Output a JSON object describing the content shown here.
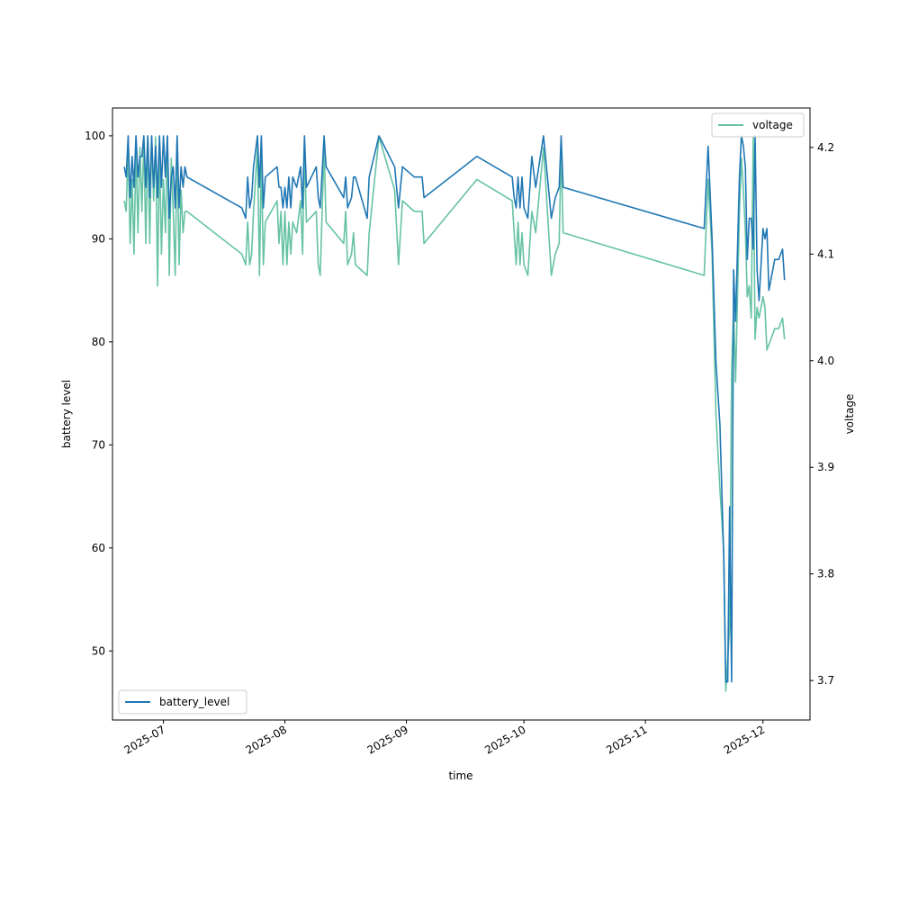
{
  "chart_data": {
    "type": "line",
    "xlabel": "time",
    "ylabel_left": "battery level",
    "ylabel_right": "voltage",
    "x_tick_labels": [
      "2025-07",
      "2025-08",
      "2025-09",
      "2025-10",
      "2025-11",
      "2025-12"
    ],
    "x_tick_dates": [
      "2025-07-01",
      "2025-08-01",
      "2025-09-01",
      "2025-10-01",
      "2025-11-01",
      "2025-12-01"
    ],
    "xlim": [
      "2025-06-18",
      "2025-12-13"
    ],
    "ylim_left": [
      43.3,
      102.7
    ],
    "ylim_right": [
      3.663,
      4.237
    ],
    "yticks_left": [
      50,
      60,
      70,
      80,
      90,
      100
    ],
    "yticks_right": [
      3.7,
      3.8,
      3.9,
      4.0,
      4.1,
      4.2
    ],
    "grid": false,
    "series": [
      {
        "name": "battery_level",
        "axis": "left",
        "color": "#1f77b4",
        "legend_position": "lower-left",
        "points": [
          [
            "2025-06-21T00:00",
            97
          ],
          [
            "2025-06-21T12:00",
            96
          ],
          [
            "2025-06-22T00:00",
            100
          ],
          [
            "2025-06-22T12:00",
            94
          ],
          [
            "2025-06-23T00:00",
            98
          ],
          [
            "2025-06-23T12:00",
            95
          ],
          [
            "2025-06-24T00:00",
            100
          ],
          [
            "2025-06-24T12:00",
            96
          ],
          [
            "2025-06-25T00:00",
            98
          ],
          [
            "2025-06-25T12:00",
            98
          ],
          [
            "2025-06-26T00:00",
            100
          ],
          [
            "2025-06-26T12:00",
            95
          ],
          [
            "2025-06-27T00:00",
            100
          ],
          [
            "2025-06-27T12:00",
            94
          ],
          [
            "2025-06-28T00:00",
            100
          ],
          [
            "2025-06-28T12:00",
            95
          ],
          [
            "2025-06-29T00:00",
            99
          ],
          [
            "2025-06-29T12:00",
            94
          ],
          [
            "2025-06-30T00:00",
            100
          ],
          [
            "2025-06-30T12:00",
            95
          ],
          [
            "2025-07-01T00:00",
            100
          ],
          [
            "2025-07-01T12:00",
            96
          ],
          [
            "2025-07-02T00:00",
            100
          ],
          [
            "2025-07-02T12:00",
            92
          ],
          [
            "2025-07-03T00:00",
            96
          ],
          [
            "2025-07-03T12:00",
            97
          ],
          [
            "2025-07-04T00:00",
            93
          ],
          [
            "2025-07-04T12:00",
            100
          ],
          [
            "2025-07-05T00:00",
            93
          ],
          [
            "2025-07-05T12:00",
            97
          ],
          [
            "2025-07-06T00:00",
            95
          ],
          [
            "2025-07-06T12:00",
            97
          ],
          [
            "2025-07-07T00:00",
            96
          ],
          [
            "2025-07-21T00:00",
            93
          ],
          [
            "2025-07-22T00:00",
            92
          ],
          [
            "2025-07-22T12:00",
            96
          ],
          [
            "2025-07-23T00:00",
            93
          ],
          [
            "2025-07-23T12:00",
            94
          ],
          [
            "2025-07-24T00:00",
            97
          ],
          [
            "2025-07-25T00:00",
            100
          ],
          [
            "2025-07-25T12:00",
            95
          ],
          [
            "2025-07-26T00:00",
            100
          ],
          [
            "2025-07-26T12:00",
            93
          ],
          [
            "2025-07-27T00:00",
            96
          ],
          [
            "2025-07-30T00:00",
            97
          ],
          [
            "2025-07-30T12:00",
            95
          ],
          [
            "2025-07-31T00:00",
            95
          ],
          [
            "2025-07-31T12:00",
            93
          ],
          [
            "2025-08-01T00:00",
            95
          ],
          [
            "2025-08-01T12:00",
            93
          ],
          [
            "2025-08-02T00:00",
            96
          ],
          [
            "2025-08-02T12:00",
            93
          ],
          [
            "2025-08-03T00:00",
            96
          ],
          [
            "2025-08-04T00:00",
            95
          ],
          [
            "2025-08-05T00:00",
            97
          ],
          [
            "2025-08-05T12:00",
            93
          ],
          [
            "2025-08-06T00:00",
            100
          ],
          [
            "2025-08-06T12:00",
            95
          ],
          [
            "2025-08-09T00:00",
            97
          ],
          [
            "2025-08-09T12:00",
            94
          ],
          [
            "2025-08-10T00:00",
            93
          ],
          [
            "2025-08-11T00:00",
            100
          ],
          [
            "2025-08-11T12:00",
            97
          ],
          [
            "2025-08-16T00:00",
            94
          ],
          [
            "2025-08-16T12:00",
            96
          ],
          [
            "2025-08-17T00:00",
            93
          ],
          [
            "2025-08-18T00:00",
            94
          ],
          [
            "2025-08-18T12:00",
            96
          ],
          [
            "2025-08-19T00:00",
            96
          ],
          [
            "2025-08-22T00:00",
            92
          ],
          [
            "2025-08-22T12:00",
            96
          ],
          [
            "2025-08-25T00:00",
            100
          ],
          [
            "2025-08-29T00:00",
            97
          ],
          [
            "2025-08-30T00:00",
            93
          ],
          [
            "2025-08-31T00:00",
            97
          ],
          [
            "2025-09-03T00:00",
            96
          ],
          [
            "2025-09-05T00:00",
            96
          ],
          [
            "2025-09-05T12:00",
            94
          ],
          [
            "2025-09-19T00:00",
            98
          ],
          [
            "2025-09-28T00:00",
            96
          ],
          [
            "2025-09-28T12:00",
            94
          ],
          [
            "2025-09-29T00:00",
            93
          ],
          [
            "2025-09-29T12:00",
            96
          ],
          [
            "2025-09-30T00:00",
            93
          ],
          [
            "2025-09-30T12:00",
            96
          ],
          [
            "2025-10-01T00:00",
            93
          ],
          [
            "2025-10-02T00:00",
            92
          ],
          [
            "2025-10-03T00:00",
            98
          ],
          [
            "2025-10-04T00:00",
            95
          ],
          [
            "2025-10-06T00:00",
            100
          ],
          [
            "2025-10-08T00:00",
            92
          ],
          [
            "2025-10-09T00:00",
            94
          ],
          [
            "2025-10-10T00:00",
            95
          ],
          [
            "2025-10-10T12:00",
            100
          ],
          [
            "2025-10-11T00:00",
            95
          ],
          [
            "2025-11-16T00:00",
            91
          ],
          [
            "2025-11-17T00:00",
            99
          ],
          [
            "2025-11-18T00:00",
            90
          ],
          [
            "2025-11-19T00:00",
            78
          ],
          [
            "2025-11-20T00:00",
            72
          ],
          [
            "2025-11-21T00:00",
            59
          ],
          [
            "2025-11-21T12:00",
            47
          ],
          [
            "2025-11-22T00:00",
            47
          ],
          [
            "2025-11-22T12:00",
            64
          ],
          [
            "2025-11-23T00:00",
            47
          ],
          [
            "2025-11-23T12:00",
            87
          ],
          [
            "2025-11-24T00:00",
            82
          ],
          [
            "2025-11-25T00:00",
            96
          ],
          [
            "2025-11-25T12:00",
            100
          ],
          [
            "2025-11-26T00:00",
            99
          ],
          [
            "2025-11-26T12:00",
            97
          ],
          [
            "2025-11-27T00:00",
            88
          ],
          [
            "2025-11-27T12:00",
            92
          ],
          [
            "2025-11-28T00:00",
            92
          ],
          [
            "2025-11-28T12:00",
            89
          ],
          [
            "2025-11-29T00:00",
            100
          ],
          [
            "2025-11-29T12:00",
            87
          ],
          [
            "2025-11-30T00:00",
            84
          ],
          [
            "2025-12-01T00:00",
            91
          ],
          [
            "2025-12-01T12:00",
            90
          ],
          [
            "2025-12-02T00:00",
            91
          ],
          [
            "2025-12-02T12:00",
            85
          ],
          [
            "2025-12-03T00:00",
            86
          ],
          [
            "2025-12-04T00:00",
            88
          ],
          [
            "2025-12-05T00:00",
            88
          ],
          [
            "2025-12-06T00:00",
            89
          ],
          [
            "2025-12-06T12:00",
            86
          ]
        ]
      },
      {
        "name": "voltage",
        "axis": "right",
        "color": "#66c2a5",
        "legend_position": "upper-right",
        "points": [
          [
            "2025-06-21T00:00",
            4.15
          ],
          [
            "2025-06-21T12:00",
            4.14
          ],
          [
            "2025-06-22T00:00",
            4.2
          ],
          [
            "2025-06-22T12:00",
            4.11
          ],
          [
            "2025-06-23T00:00",
            4.17
          ],
          [
            "2025-06-23T12:00",
            4.1
          ],
          [
            "2025-06-24T00:00",
            4.2
          ],
          [
            "2025-06-24T12:00",
            4.12
          ],
          [
            "2025-06-25T00:00",
            4.2
          ],
          [
            "2025-06-25T12:00",
            4.14
          ],
          [
            "2025-06-26T00:00",
            4.21
          ],
          [
            "2025-06-26T12:00",
            4.11
          ],
          [
            "2025-06-27T00:00",
            4.21
          ],
          [
            "2025-06-27T12:00",
            4.11
          ],
          [
            "2025-06-28T00:00",
            4.21
          ],
          [
            "2025-06-28T12:00",
            4.15
          ],
          [
            "2025-06-29T00:00",
            4.21
          ],
          [
            "2025-06-29T12:00",
            4.07
          ],
          [
            "2025-06-30T00:00",
            4.2
          ],
          [
            "2025-06-30T12:00",
            4.1
          ],
          [
            "2025-07-01T00:00",
            4.17
          ],
          [
            "2025-07-01T12:00",
            4.12
          ],
          [
            "2025-07-02T00:00",
            4.21
          ],
          [
            "2025-07-02T12:00",
            4.08
          ],
          [
            "2025-07-03T00:00",
            4.19
          ],
          [
            "2025-07-03T12:00",
            4.14
          ],
          [
            "2025-07-04T00:00",
            4.08
          ],
          [
            "2025-07-04T12:00",
            4.21
          ],
          [
            "2025-07-05T00:00",
            4.09
          ],
          [
            "2025-07-05T12:00",
            4.16
          ],
          [
            "2025-07-06T00:00",
            4.12
          ],
          [
            "2025-07-06T12:00",
            4.14
          ],
          [
            "2025-07-07T00:00",
            4.14
          ],
          [
            "2025-07-21T00:00",
            4.1
          ],
          [
            "2025-07-22T00:00",
            4.09
          ],
          [
            "2025-07-22T12:00",
            4.13
          ],
          [
            "2025-07-23T00:00",
            4.09
          ],
          [
            "2025-07-23T12:00",
            4.1
          ],
          [
            "2025-07-24T00:00",
            4.14
          ],
          [
            "2025-07-25T00:00",
            4.2
          ],
          [
            "2025-07-25T12:00",
            4.08
          ],
          [
            "2025-07-26T00:00",
            4.19
          ],
          [
            "2025-07-26T12:00",
            4.09
          ],
          [
            "2025-07-27T00:00",
            4.13
          ],
          [
            "2025-07-30T00:00",
            4.15
          ],
          [
            "2025-07-30T12:00",
            4.11
          ],
          [
            "2025-07-31T00:00",
            4.14
          ],
          [
            "2025-07-31T12:00",
            4.09
          ],
          [
            "2025-08-01T00:00",
            4.14
          ],
          [
            "2025-08-01T12:00",
            4.09
          ],
          [
            "2025-08-02T00:00",
            4.13
          ],
          [
            "2025-08-02T12:00",
            4.1
          ],
          [
            "2025-08-03T00:00",
            4.13
          ],
          [
            "2025-08-04T00:00",
            4.12
          ],
          [
            "2025-08-05T00:00",
            4.15
          ],
          [
            "2025-08-05T12:00",
            4.1
          ],
          [
            "2025-08-06T00:00",
            4.2
          ],
          [
            "2025-08-06T12:00",
            4.13
          ],
          [
            "2025-08-09T00:00",
            4.14
          ],
          [
            "2025-08-09T12:00",
            4.09
          ],
          [
            "2025-08-10T00:00",
            4.08
          ],
          [
            "2025-08-11T00:00",
            4.2
          ],
          [
            "2025-08-11T12:00",
            4.13
          ],
          [
            "2025-08-16T00:00",
            4.11
          ],
          [
            "2025-08-16T12:00",
            4.14
          ],
          [
            "2025-08-17T00:00",
            4.09
          ],
          [
            "2025-08-18T00:00",
            4.1
          ],
          [
            "2025-08-18T12:00",
            4.12
          ],
          [
            "2025-08-19T00:00",
            4.09
          ],
          [
            "2025-08-22T00:00",
            4.08
          ],
          [
            "2025-08-22T12:00",
            4.12
          ],
          [
            "2025-08-25T00:00",
            4.21
          ],
          [
            "2025-08-29T00:00",
            4.16
          ],
          [
            "2025-08-30T00:00",
            4.09
          ],
          [
            "2025-08-31T00:00",
            4.15
          ],
          [
            "2025-09-03T00:00",
            4.14
          ],
          [
            "2025-09-05T00:00",
            4.14
          ],
          [
            "2025-09-05T12:00",
            4.11
          ],
          [
            "2025-09-19T00:00",
            4.17
          ],
          [
            "2025-09-28T00:00",
            4.15
          ],
          [
            "2025-09-28T12:00",
            4.12
          ],
          [
            "2025-09-29T00:00",
            4.09
          ],
          [
            "2025-09-29T12:00",
            4.13
          ],
          [
            "2025-09-30T00:00",
            4.09
          ],
          [
            "2025-09-30T12:00",
            4.12
          ],
          [
            "2025-10-01T00:00",
            4.09
          ],
          [
            "2025-10-02T00:00",
            4.08
          ],
          [
            "2025-10-03T00:00",
            4.14
          ],
          [
            "2025-10-04T00:00",
            4.12
          ],
          [
            "2025-10-06T00:00",
            4.2
          ],
          [
            "2025-10-08T00:00",
            4.08
          ],
          [
            "2025-10-09T00:00",
            4.1
          ],
          [
            "2025-10-10T00:00",
            4.11
          ],
          [
            "2025-10-10T12:00",
            4.2
          ],
          [
            "2025-10-11T00:00",
            4.12
          ],
          [
            "2025-11-16T00:00",
            4.08
          ],
          [
            "2025-11-17T00:00",
            4.17
          ],
          [
            "2025-11-18T00:00",
            4.1
          ],
          [
            "2025-11-19T00:00",
            3.95
          ],
          [
            "2025-11-20T00:00",
            3.88
          ],
          [
            "2025-11-21T00:00",
            3.82
          ],
          [
            "2025-11-21T12:00",
            3.69
          ],
          [
            "2025-11-22T00:00",
            3.72
          ],
          [
            "2025-11-22T12:00",
            3.75
          ],
          [
            "2025-11-23T00:00",
            3.99
          ],
          [
            "2025-11-23T12:00",
            4.05
          ],
          [
            "2025-11-24T00:00",
            3.98
          ],
          [
            "2025-11-25T00:00",
            4.14
          ],
          [
            "2025-11-25T12:00",
            4.19
          ],
          [
            "2025-11-26T00:00",
            4.16
          ],
          [
            "2025-11-26T12:00",
            4.12
          ],
          [
            "2025-11-27T00:00",
            4.06
          ],
          [
            "2025-11-27T12:00",
            4.07
          ],
          [
            "2025-11-28T00:00",
            4.04
          ],
          [
            "2025-11-28T12:00",
            4.21
          ],
          [
            "2025-11-29T00:00",
            4.02
          ],
          [
            "2025-11-29T12:00",
            4.05
          ],
          [
            "2025-11-30T00:00",
            4.04
          ],
          [
            "2025-12-01T00:00",
            4.06
          ],
          [
            "2025-12-01T12:00",
            4.05
          ],
          [
            "2025-12-02T00:00",
            4.01
          ],
          [
            "2025-12-03T00:00",
            4.02
          ],
          [
            "2025-12-04T00:00",
            4.03
          ],
          [
            "2025-12-05T00:00",
            4.03
          ],
          [
            "2025-12-06T00:00",
            4.04
          ],
          [
            "2025-12-06T12:00",
            4.02
          ]
        ]
      }
    ]
  }
}
